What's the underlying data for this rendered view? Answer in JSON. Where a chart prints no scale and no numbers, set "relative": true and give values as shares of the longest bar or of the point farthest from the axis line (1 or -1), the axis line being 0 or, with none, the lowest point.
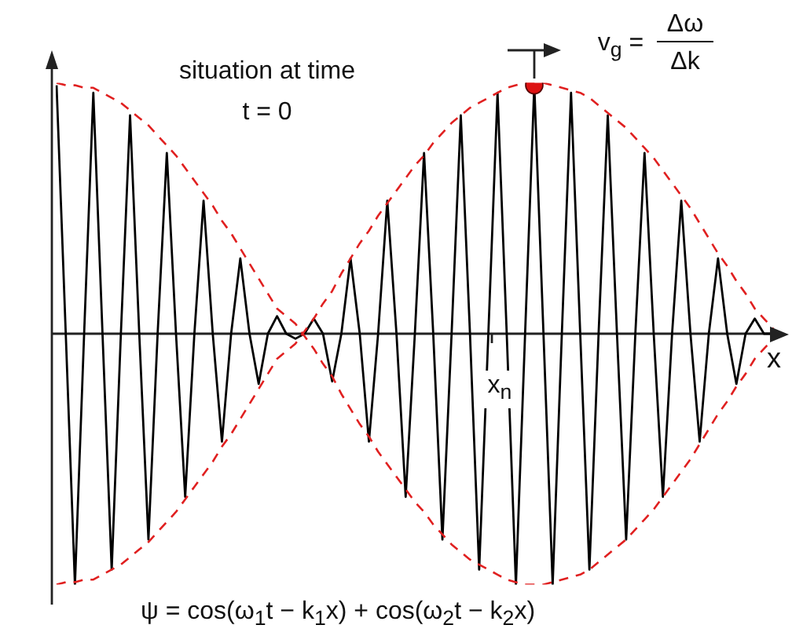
{
  "chart_data": {
    "type": "line",
    "relative": true,
    "xlabel": "x",
    "legend": false,
    "categories": [
      null,
      null,
      null,
      null,
      null,
      null,
      null,
      null,
      null,
      null,
      null,
      null,
      null,
      null,
      null,
      null,
      null,
      null,
      null,
      null,
      null,
      null,
      null,
      null,
      null,
      null,
      null,
      null,
      null,
      null,
      null,
      null,
      null,
      null,
      null,
      null,
      null,
      null,
      null,
      null,
      null,
      null,
      null,
      null,
      null,
      null,
      null,
      null,
      null,
      null,
      null,
      null,
      null,
      null,
      null,
      null,
      null,
      null,
      null,
      null,
      null,
      null,
      null,
      null,
      null,
      null,
      null,
      null,
      null,
      null,
      null,
      null,
      null,
      null,
      null,
      null,
      null,
      null,
      null
    ],
    "series": [
      {
        "type": "line",
        "color": "#000000",
        "line_style": "solid",
        "marker": "none",
        "values": [
          0.99,
          0,
          -1.0,
          0,
          0.96,
          0,
          -0.94,
          0,
          0.87,
          0,
          -0.82,
          0,
          0.72,
          0,
          -0.65,
          0,
          0.53,
          0,
          -0.43,
          0,
          0.3,
          0,
          -0.2,
          0,
          0.07,
          0,
          -0.02,
          0,
          0.06,
          0,
          -0.19,
          0,
          0.3,
          0,
          -0.43,
          0,
          0.53,
          0,
          -0.65,
          0,
          0.72,
          0,
          -0.82,
          0,
          0.87,
          0,
          -0.94,
          0,
          0.96,
          0,
          -1.0,
          0,
          0.99,
          0,
          -1.0,
          0,
          0.96,
          0,
          -0.94,
          0,
          0.87,
          0,
          -0.82,
          0,
          0.72,
          0,
          -0.65,
          0,
          0.53,
          0,
          -0.43,
          0,
          0.3,
          0,
          -0.2,
          0,
          0.06,
          0,
          0.0
        ]
      },
      {
        "type": "line",
        "color": "#e02020",
        "line_style": "dashed",
        "marker": "none",
        "values": [
          1.0,
          0.99,
          0.99,
          0.98,
          0.98,
          0.96,
          0.94,
          0.92,
          0.89,
          0.86,
          0.83,
          0.79,
          0.75,
          0.71,
          0.66,
          0.61,
          0.56,
          0.51,
          0.45,
          0.4,
          0.34,
          0.28,
          0.22,
          0.16,
          0.1,
          0.07,
          0.04,
          -0.01,
          -0.06,
          -0.12,
          -0.17,
          -0.24,
          -0.3,
          -0.36,
          -0.41,
          -0.47,
          -0.52,
          -0.57,
          -0.62,
          -0.67,
          -0.71,
          -0.76,
          -0.8,
          -0.84,
          -0.87,
          -0.9,
          -0.92,
          -0.94,
          -0.96,
          -0.98,
          -0.99,
          -1.0,
          -1.0,
          -1.0,
          -0.99,
          -0.98,
          -0.97,
          -0.96,
          -0.94,
          -0.91,
          -0.88,
          -0.85,
          -0.82,
          -0.78,
          -0.74,
          -0.7,
          -0.65,
          -0.6,
          -0.55,
          -0.5,
          -0.44,
          -0.38,
          -0.32,
          -0.27,
          -0.21,
          -0.16,
          -0.1,
          -0.06,
          -0.02
        ]
      },
      {
        "type": "line",
        "color": "#e02020",
        "line_style": "dashed",
        "marker": "none",
        "values": [
          -1.0,
          -0.99,
          -0.99,
          -0.98,
          -0.98,
          -0.96,
          -0.94,
          -0.92,
          -0.89,
          -0.86,
          -0.83,
          -0.79,
          -0.75,
          -0.71,
          -0.66,
          -0.61,
          -0.56,
          -0.51,
          -0.45,
          -0.4,
          -0.34,
          -0.28,
          -0.22,
          -0.16,
          -0.1,
          -0.07,
          -0.04,
          0.01,
          0.06,
          0.12,
          0.17,
          0.24,
          0.3,
          0.36,
          0.41,
          0.47,
          0.52,
          0.57,
          0.62,
          0.67,
          0.71,
          0.76,
          0.8,
          0.84,
          0.87,
          0.9,
          0.92,
          0.94,
          0.96,
          0.98,
          0.99,
          1.0,
          1.0,
          1.0,
          0.99,
          0.98,
          0.97,
          0.96,
          0.94,
          0.91,
          0.88,
          0.85,
          0.82,
          0.78,
          0.74,
          0.7,
          0.65,
          0.6,
          0.55,
          0.5,
          0.44,
          0.38,
          0.32,
          0.27,
          0.21,
          0.16,
          0.1,
          0.06,
          0.02
        ]
      },
      {
        "type": "line",
        "color": "#dd1111",
        "marker": "circle",
        "values": [
          null,
          null,
          null,
          null,
          null,
          null,
          null,
          null,
          null,
          null,
          null,
          null,
          null,
          null,
          null,
          null,
          null,
          null,
          null,
          null,
          null,
          null,
          null,
          null,
          null,
          null,
          null,
          null,
          null,
          null,
          null,
          null,
          null,
          null,
          null,
          null,
          null,
          null,
          null,
          null,
          null,
          null,
          null,
          null,
          null,
          null,
          null,
          null,
          null,
          null,
          null,
          null,
          0.99,
          null,
          null,
          null,
          null,
          null,
          null,
          null,
          null,
          null,
          null,
          null,
          null,
          null,
          null,
          null,
          null,
          null,
          null,
          null,
          null,
          null,
          null,
          null,
          null,
          null,
          null
        ]
      }
    ],
    "annotations": [
      "situation at time",
      "t = 0",
      "v$_{g}$ =",
      "Δω",
      "Δk",
      "x$_{n}$",
      "ψ = cos(ω$_{1}$t − k$_{1}$x) + cos(ω$_{2}$t − k$_{2}$x)"
    ]
  }
}
